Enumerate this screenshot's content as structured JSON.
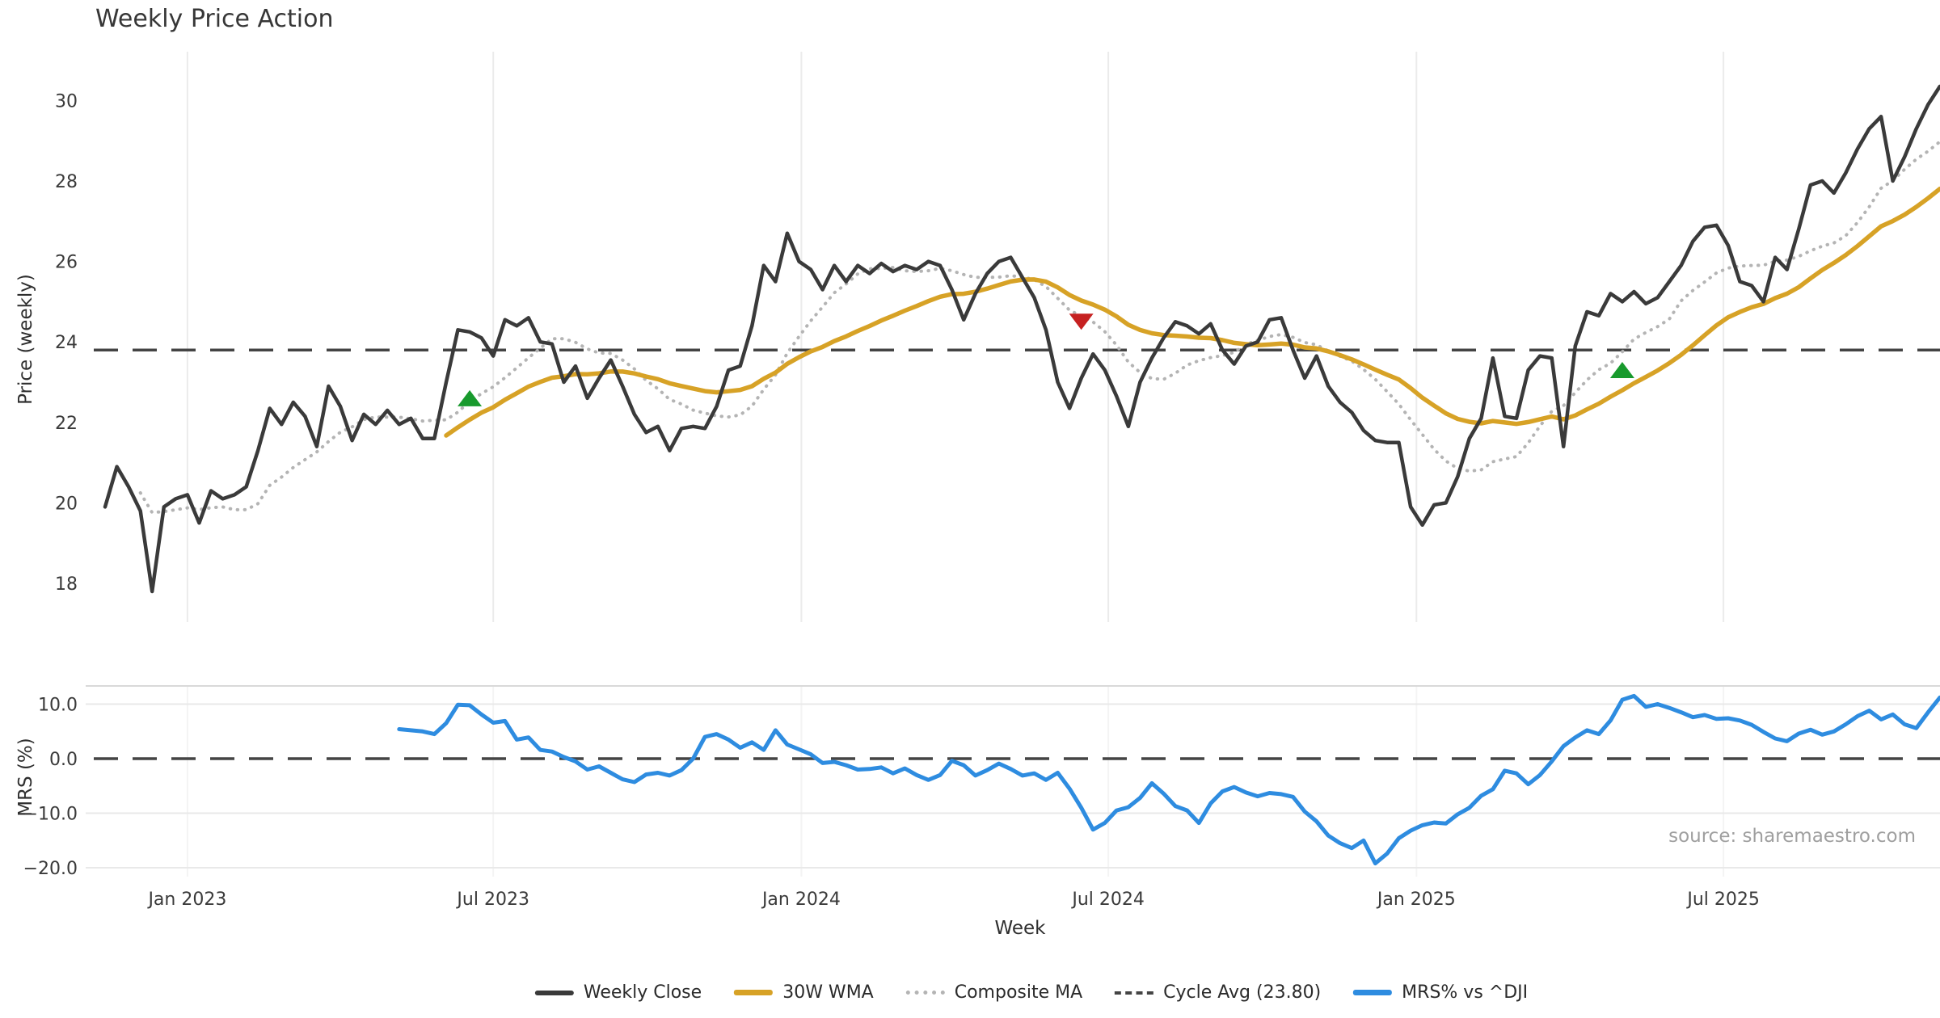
{
  "title": "Weekly Price Action",
  "source_note": "source: sharemaestro.com",
  "colors": {
    "close": "#3a3a3a",
    "wma": "#d7a226",
    "composite": "#b4b4b4",
    "cycle_dash": "#444444",
    "mrs_blue": "#2e8ce0",
    "buy_marker": "#189a2d",
    "sell_marker": "#c62121",
    "grid": "#ebebeb",
    "grid_faint": "#f4f4f4",
    "spine": "#d9d9d9",
    "tick_text": "#3a3a3a"
  },
  "legend": {
    "items": [
      {
        "label": "Weekly Close",
        "swatch": "solid-dark"
      },
      {
        "label": "30W WMA",
        "swatch": "solid-gold"
      },
      {
        "label": "Composite MA",
        "swatch": "dotted"
      },
      {
        "label": "Cycle Avg (23.80)",
        "swatch": "dashed"
      },
      {
        "label": "MRS% vs ^DJI",
        "swatch": "solid-blue"
      }
    ]
  },
  "price_axis": {
    "label": "Price (weekly)",
    "ticks": [
      {
        "label": "18",
        "value": 18
      },
      {
        "label": "20",
        "value": 20
      },
      {
        "label": "22",
        "value": 22
      },
      {
        "label": "24",
        "value": 24
      },
      {
        "label": "26",
        "value": 26
      },
      {
        "label": "28",
        "value": 28
      },
      {
        "label": "30",
        "value": 30
      }
    ]
  },
  "mrs_axis": {
    "label": "MRS (%)",
    "ticks": [
      {
        "label": "10.0",
        "value": 10
      },
      {
        "label": "0.0",
        "value": 0
      },
      {
        "label": "−10.0",
        "value": -10
      },
      {
        "label": "−20.0",
        "value": -20
      }
    ],
    "gridlines": [
      10,
      -10,
      -20
    ]
  },
  "x_axis": {
    "label": "Week",
    "ticks": [
      {
        "label": "Jan 2023",
        "week": 7.0
      },
      {
        "label": "Jul 2023",
        "week": 33.0
      },
      {
        "label": "Jan 2024",
        "week": 59.2
      },
      {
        "label": "Jul 2024",
        "week": 85.3
      },
      {
        "label": "Jan 2025",
        "week": 111.5
      },
      {
        "label": "Jul 2025",
        "week": 137.6
      }
    ]
  },
  "chart_data": {
    "type": "line",
    "title": "Weekly Price Action",
    "x": "weekly index, week 0 = mid-Nov 2022, ~14.55px per week",
    "panels": [
      {
        "name": "price",
        "ylabel": "Price (weekly)",
        "ylim": [
          17.4,
          31.2
        ],
        "cycle_avg": 23.8,
        "series": [
          {
            "name": "Weekly Close",
            "style": "solid",
            "start_week": 0,
            "values": [
              19.9,
              20.9,
              20.4,
              19.8,
              17.8,
              19.9,
              20.1,
              20.2,
              19.5,
              20.3,
              20.1,
              20.2,
              20.4,
              21.3,
              22.35,
              21.95,
              22.5,
              22.15,
              21.4,
              22.9,
              22.4,
              21.55,
              22.2,
              21.95,
              22.3,
              21.95,
              22.1,
              21.6,
              21.6,
              23.0,
              24.3,
              24.25,
              24.1,
              23.65,
              24.55,
              24.4,
              24.6,
              24.0,
              23.95,
              23.0,
              23.4,
              22.6,
              23.1,
              23.55,
              22.9,
              22.2,
              21.75,
              21.9,
              21.3,
              21.85,
              21.9,
              21.85,
              22.4,
              23.3,
              23.4,
              24.4,
              25.9,
              25.5,
              26.7,
              26.0,
              25.8,
              25.3,
              25.9,
              25.5,
              25.9,
              25.7,
              25.95,
              25.75,
              25.9,
              25.8,
              26.0,
              25.9,
              25.3,
              24.55,
              25.2,
              25.7,
              26.0,
              26.1,
              25.6,
              25.1,
              24.3,
              23.0,
              22.35,
              23.1,
              23.7,
              23.3,
              22.65,
              21.9,
              23.0,
              23.6,
              24.1,
              24.5,
              24.4,
              24.2,
              24.45,
              23.8,
              23.45,
              23.9,
              24.0,
              24.55,
              24.6,
              23.8,
              23.1,
              23.65,
              22.9,
              22.5,
              22.25,
              21.8,
              21.55,
              21.5,
              21.5,
              19.9,
              19.45,
              19.95,
              20.0,
              20.65,
              21.6,
              22.1,
              23.6,
              22.15,
              22.1,
              23.3,
              23.65,
              23.6,
              21.4,
              23.9,
              24.75,
              24.65,
              25.2,
              25.0,
              25.25,
              24.95,
              25.1,
              25.5,
              25.9,
              26.5,
              26.85,
              26.9,
              26.4,
              25.5,
              25.4,
              25.0,
              26.1,
              25.8,
              26.8,
              27.9,
              28.0,
              27.7,
              28.2,
              28.8,
              29.3,
              29.6,
              28.0,
              28.6,
              29.3,
              29.9,
              30.35
            ]
          },
          {
            "name": "30W WMA",
            "style": "solid",
            "computed": "wma30_of_weekly_close"
          },
          {
            "name": "Composite MA",
            "style": "dotted",
            "computed": "sma10_of_weekly_close"
          },
          {
            "name": "Cycle Avg (23.80)",
            "style": "dashed",
            "constant": 23.8
          }
        ],
        "markers": [
          {
            "type": "buy-signal",
            "shape": "triangle-up",
            "week": 31,
            "value": 22.6
          },
          {
            "type": "sell-signal",
            "shape": "triangle-down",
            "week": 83,
            "value": 24.5
          },
          {
            "type": "buy-signal",
            "shape": "triangle-up",
            "week": 129,
            "value": 23.3
          }
        ]
      },
      {
        "name": "mrs",
        "ylabel": "MRS (%)",
        "ylim": [
          -21.6,
          13.3
        ],
        "zero_line": 0,
        "series": [
          {
            "name": "MRS% vs ^DJI",
            "style": "solid",
            "start_week": 25,
            "values": [
              5.4,
              5.2,
              5.0,
              4.5,
              6.5,
              9.9,
              9.8,
              8.1,
              6.6,
              6.9,
              3.5,
              3.9,
              1.6,
              1.3,
              0.3,
              -0.5,
              -2.0,
              -1.4,
              -2.6,
              -3.8,
              -4.3,
              -2.9,
              -2.6,
              -3.1,
              -2.1,
              0.0,
              4.0,
              4.5,
              3.5,
              2.0,
              3.0,
              1.6,
              5.2,
              2.6,
              1.7,
              0.8,
              -0.8,
              -0.6,
              -1.2,
              -2.0,
              -1.9,
              -1.6,
              -2.7,
              -1.8,
              -3.0,
              -3.9,
              -3.0,
              -0.4,
              -1.2,
              -3.1,
              -2.1,
              -0.9,
              -1.9,
              -3.1,
              -2.7,
              -3.9,
              -2.6,
              -5.5,
              -9.0,
              -13.0,
              -11.8,
              -9.5,
              -8.9,
              -7.2,
              -4.5,
              -6.4,
              -8.7,
              -9.5,
              -11.8,
              -8.2,
              -6.0,
              -5.2,
              -6.2,
              -6.9,
              -6.3,
              -6.5,
              -7.0,
              -9.7,
              -11.5,
              -14.1,
              -15.5,
              -16.4,
              -15.0,
              -19.2,
              -17.4,
              -14.6,
              -13.2,
              -12.2,
              -11.7,
              -11.9,
              -10.2,
              -9.0,
              -6.8,
              -5.6,
              -2.2,
              -2.7,
              -4.7,
              -3.0,
              -0.5,
              2.3,
              3.9,
              5.2,
              4.5,
              7.0,
              10.8,
              11.5,
              9.5,
              10.0,
              9.3,
              8.5,
              7.6,
              8.0,
              7.3,
              7.4,
              7.0,
              6.2,
              4.9,
              3.7,
              3.2,
              4.6,
              5.3,
              4.4,
              5.0,
              6.3,
              7.8,
              8.8,
              7.2,
              8.1,
              6.3,
              5.6,
              8.5,
              11.2
            ]
          },
          {
            "name": "Zero line",
            "style": "dashed",
            "constant": 0
          }
        ]
      }
    ]
  }
}
